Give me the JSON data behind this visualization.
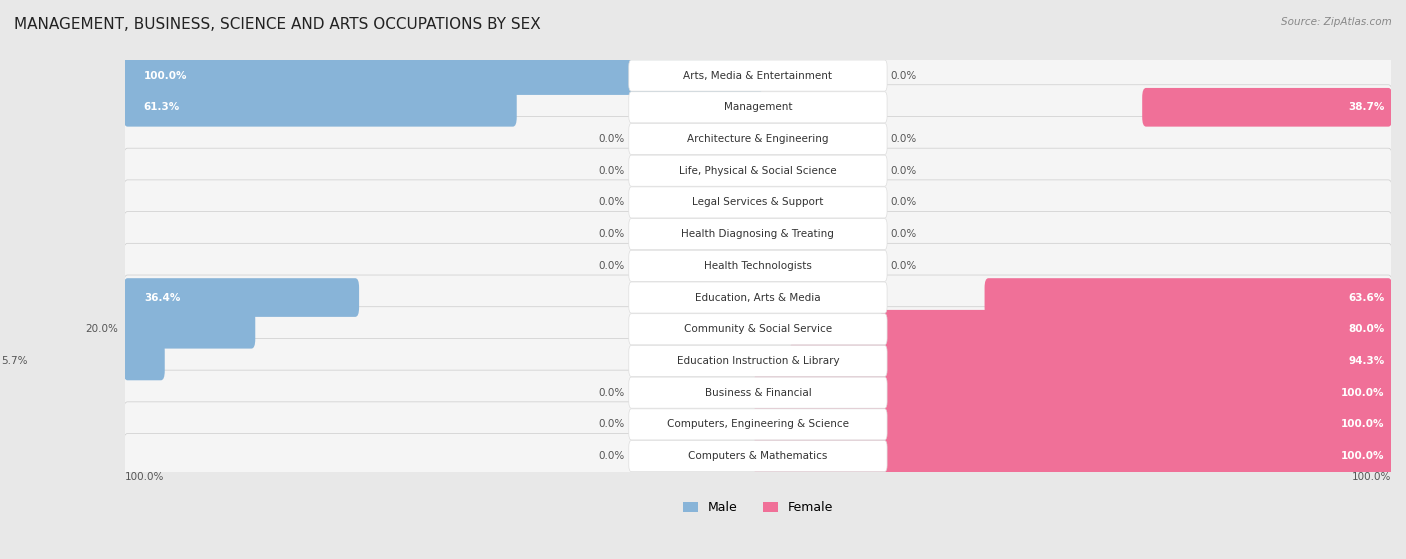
{
  "title": "MANAGEMENT, BUSINESS, SCIENCE AND ARTS OCCUPATIONS BY SEX",
  "source": "Source: ZipAtlas.com",
  "categories": [
    "Arts, Media & Entertainment",
    "Management",
    "Architecture & Engineering",
    "Life, Physical & Social Science",
    "Legal Services & Support",
    "Health Diagnosing & Treating",
    "Health Technologists",
    "Education, Arts & Media",
    "Community & Social Service",
    "Education Instruction & Library",
    "Business & Financial",
    "Computers, Engineering & Science",
    "Computers & Mathematics"
  ],
  "male": [
    100.0,
    61.3,
    0.0,
    0.0,
    0.0,
    0.0,
    0.0,
    36.4,
    20.0,
    5.7,
    0.0,
    0.0,
    0.0
  ],
  "female": [
    0.0,
    38.7,
    0.0,
    0.0,
    0.0,
    0.0,
    0.0,
    63.6,
    80.0,
    94.3,
    100.0,
    100.0,
    100.0
  ],
  "male_color": "#88b4d8",
  "female_color": "#f07098",
  "male_label": "Male",
  "female_label": "Female",
  "bg_color": "#e8e8e8",
  "row_color": "#f5f5f5",
  "title_fontsize": 11,
  "label_fontsize": 7.5,
  "value_fontsize": 7.5,
  "bottom_labels": [
    "100.0%",
    "100.0%"
  ]
}
